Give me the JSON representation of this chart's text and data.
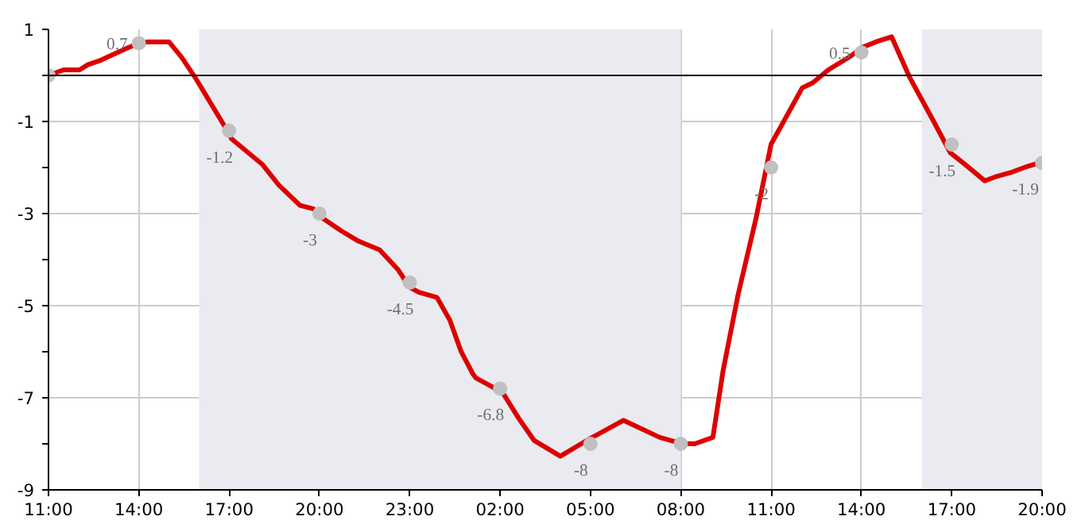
{
  "chart_data": {
    "type": "line",
    "x": [
      "2000-01-01T11:00",
      "2000-01-01T11:30",
      "2000-01-01T12:02",
      "2000-01-01T12:18",
      "2000-01-01T12:42",
      "2000-01-01T13:04",
      "2000-01-01T13:36",
      "2000-01-01T14:00",
      "2000-01-01T14:18",
      "2000-01-01T15:00",
      "2000-01-01T15:25",
      "2000-01-01T15:52",
      "2000-01-01T16:23",
      "2000-01-01T16:54",
      "2000-01-01T17:05",
      "2000-01-01T17:36",
      "2000-01-01T18:06",
      "2000-01-01T18:39",
      "2000-01-01T19:21",
      "2000-01-01T19:48",
      "2000-01-01T20:06",
      "2000-01-01T20:44",
      "2000-01-01T21:18",
      "2000-01-01T22:00",
      "2000-01-01T22:36",
      "2000-01-01T23:00",
      "2000-01-01T23:18",
      "2000-01-01T23:54",
      "2000-01-02T00:20",
      "2000-01-02T00:42",
      "2000-01-02T01:06",
      "2000-01-02T01:12",
      "2000-01-02T01:54",
      "2000-01-02T02:00",
      "2000-01-02T02:36",
      "2000-01-02T03:08",
      "2000-01-02T04:00",
      "2000-01-02T05:00",
      "2000-01-02T06:06",
      "2000-01-02T07:18",
      "2000-01-02T08:00",
      "2000-01-02T08:28",
      "2000-01-02T09:04",
      "2000-01-02T09:24",
      "2000-01-02T09:54",
      "2000-01-02T10:30",
      "2000-01-02T11:00",
      "2000-01-02T11:20",
      "2000-01-02T12:02",
      "2000-01-02T12:23",
      "2000-01-02T12:54",
      "2000-01-02T13:36",
      "2000-01-02T14:02",
      "2000-01-02T14:29",
      "2000-01-02T15:00",
      "2000-01-02T15:36",
      "2000-01-02T16:24",
      "2000-01-02T16:57",
      "2000-01-02T17:26",
      "2000-01-02T18:06",
      "2000-01-02T18:30",
      "2000-01-02T19:00",
      "2000-01-02T19:32",
      "2000-01-02T20:00"
    ],
    "series": [
      {
        "color": "#dd0000",
        "values": [
          0,
          0.12,
          0.12,
          0.23,
          0.32,
          0.43,
          0.59,
          0.7,
          0.73,
          0.73,
          0.4,
          -0.04,
          -0.6,
          -1.16,
          -1.38,
          -1.66,
          -1.93,
          -2.38,
          -2.82,
          -2.9,
          -3.1,
          -3.38,
          -3.6,
          -3.79,
          -4.21,
          -4.6,
          -4.71,
          -4.82,
          -5.32,
          -5.99,
          -6.49,
          -6.57,
          -6.82,
          -6.8,
          -7.43,
          -7.93,
          -8.27,
          -7.88,
          -7.49,
          -7.86,
          -7.99,
          -8,
          -7.86,
          -6.43,
          -4.77,
          -3.1,
          -1.49,
          -1.1,
          -0.27,
          -0.16,
          0.12,
          0.4,
          0.61,
          0.73,
          0.84,
          -0.04,
          -1,
          -1.68,
          -1.93,
          -2.29,
          -2.19,
          -2.1,
          -1.97,
          -1.88
        ]
      },
      {
        "type": "scatter",
        "color": "#c0c0c0",
        "marker": "circle",
        "x": [
          "2000-01-01T11:00",
          "2000-01-01T14:00",
          "2000-01-01T17:00",
          "2000-01-01T20:00",
          "2000-01-01T23:00",
          "2000-01-02T02:00",
          "2000-01-02T05:00",
          "2000-01-02T08:00",
          "2000-01-02T11:00",
          "2000-01-02T14:00",
          "2000-01-02T17:00",
          "2000-01-02T20:00"
        ],
        "values": [
          0,
          0.7,
          -1.2,
          -3,
          -4.5,
          -6.8,
          -8,
          -8,
          -2,
          0.5,
          -1.5,
          -1.9
        ],
        "value_labels": [
          null,
          "0.7",
          "-1.2",
          "-3",
          "-4.5",
          "-6.8",
          "-8",
          "-8",
          "-2",
          "0.5",
          "-1.5",
          "-1.9"
        ]
      }
    ],
    "xlim": [
      "2000-01-01T11:00",
      "2000-01-02T20:00"
    ],
    "xticks": [
      {
        "value": "2000-01-01T11:00",
        "label": "11:00"
      },
      {
        "value": "2000-01-01T14:00",
        "label": "14:00"
      },
      {
        "value": "2000-01-01T17:00",
        "label": "17:00"
      },
      {
        "value": "2000-01-01T20:00",
        "label": "20:00"
      },
      {
        "value": "2000-01-01T23:00",
        "label": "23:00"
      },
      {
        "value": "2000-01-02T02:00",
        "label": "02:00"
      },
      {
        "value": "2000-01-02T05:00",
        "label": "05:00"
      },
      {
        "value": "2000-01-02T08:00",
        "label": "08:00"
      },
      {
        "value": "2000-01-02T11:00",
        "label": "11:00"
      },
      {
        "value": "2000-01-02T14:00",
        "label": "14:00"
      },
      {
        "value": "2000-01-02T17:00",
        "label": "17:00"
      },
      {
        "value": "2000-01-02T20:00",
        "label": "20:00"
      }
    ],
    "ylim": [
      -9,
      1
    ],
    "yticks": [
      1,
      {
        "value": 0,
        "label": null
      },
      -1,
      {
        "value": -2,
        "label": null
      },
      -3,
      {
        "value": -4,
        "label": null
      },
      -5,
      {
        "value": -6,
        "label": null
      },
      -7,
      {
        "value": -8,
        "label": null
      },
      -9
    ],
    "grid": true,
    "line_style": "solid",
    "ref_lines": [
      {
        "axis": "y",
        "value": 0,
        "color": "#000000"
      }
    ],
    "bands": [
      {
        "axis": "x",
        "from": "2000-01-01T16:00",
        "to": "2000-01-02T08:00",
        "color": "#eaebf0"
      },
      {
        "axis": "x",
        "from": "2000-01-02T16:00",
        "to": "2000-01-02T20:00",
        "color": "#eaebf0"
      }
    ]
  }
}
